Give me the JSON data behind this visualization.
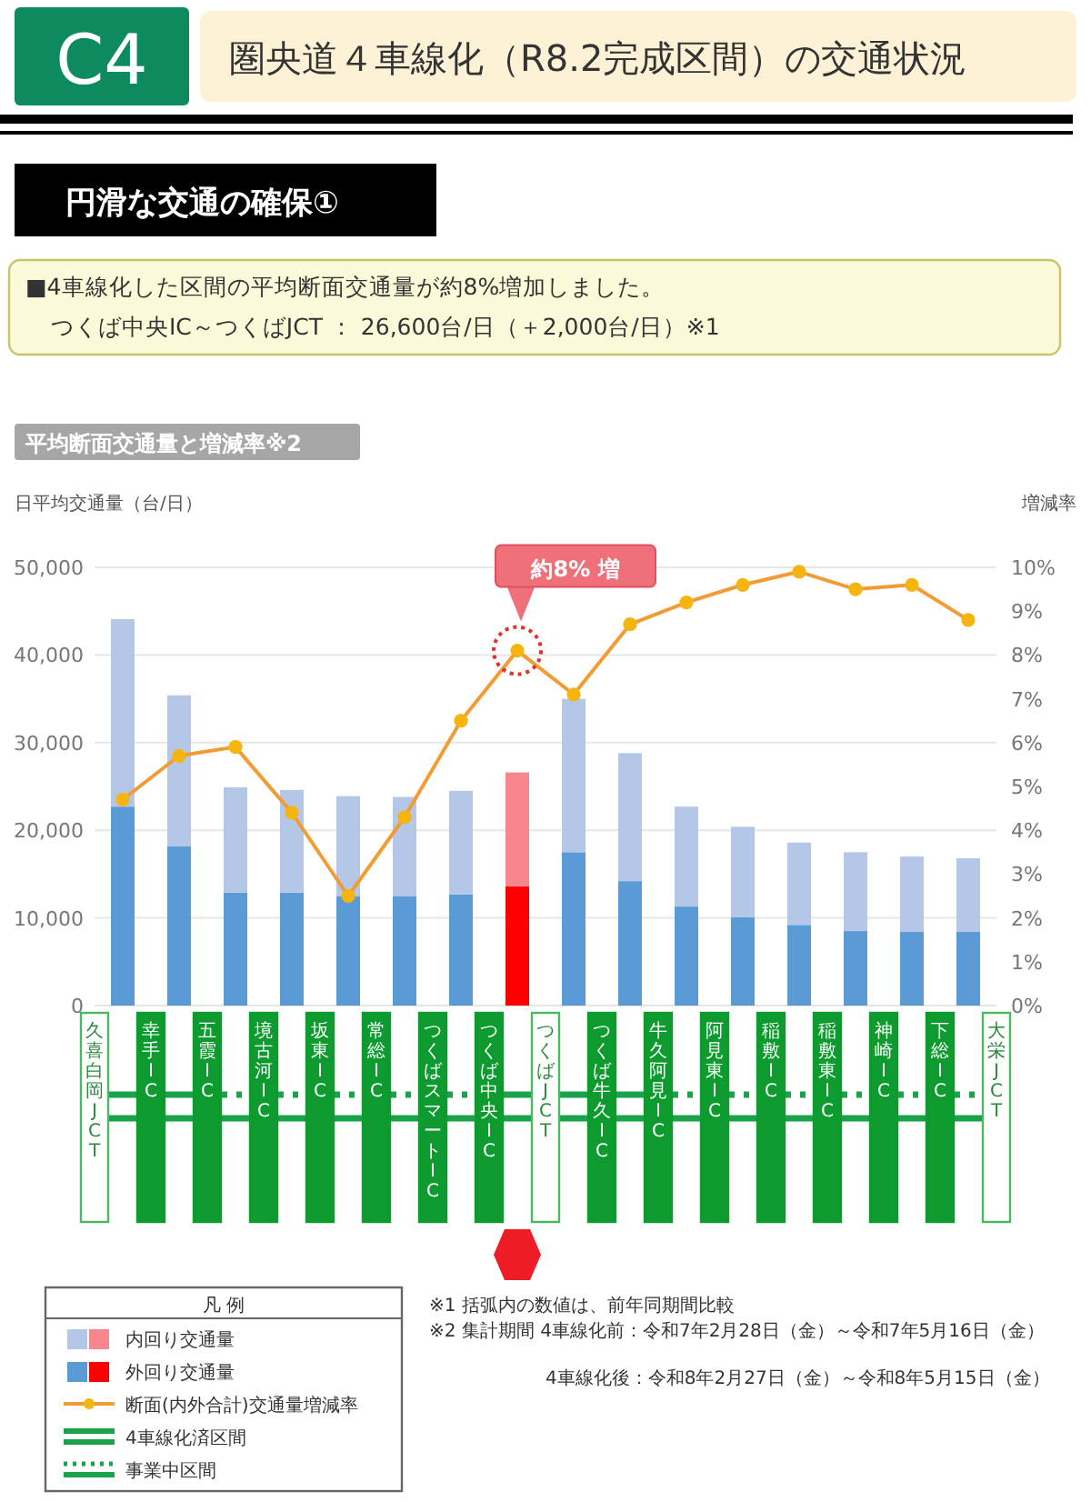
{
  "chart_data": {
    "type": "bar",
    "title": "圏央道４車線化（R8.2完成区間）の交通状況",
    "subtitle": "円滑な交通の確保①",
    "ylabel": "日平均交通量（台/日）",
    "y2label": "増減率",
    "legend_title": "凡 例",
    "categories": [
      null,
      null,
      null,
      null,
      null,
      null,
      null,
      null,
      null,
      null,
      null,
      null,
      null,
      null,
      null,
      null
    ],
    "stacked": true,
    "grid": "y",
    "legend": "bottom left",
    "marker": "circle",
    "line_style": "solid",
    "tick_labels": "y",
    "ylim": [
      0,
      50000
    ],
    "yticks": [
      0,
      {
        "value": 10000,
        "label": "10,000"
      },
      {
        "value": 20000,
        "label": "20,000"
      },
      {
        "value": 30000,
        "label": "30,000"
      },
      {
        "value": 40000,
        "label": "40,000"
      },
      {
        "value": 50000,
        "label": "50,000"
      }
    ],
    "y2lim": [
      0,
      10
    ],
    "y2ticks": [
      {
        "value": 0,
        "label": "0%"
      },
      {
        "value": 1,
        "label": "1%"
      },
      {
        "value": 2,
        "label": "2%"
      },
      {
        "value": 3,
        "label": "3%"
      },
      {
        "value": 4,
        "label": "4%"
      },
      {
        "value": 5,
        "label": "5%"
      },
      {
        "value": 6,
        "label": "6%"
      },
      {
        "value": 7,
        "label": "7%"
      },
      {
        "value": 8,
        "label": "8%"
      },
      {
        "value": 9,
        "label": "9%"
      },
      {
        "value": 10,
        "label": "10%"
      }
    ],
    "series": [
      {
        "name": "外回り交通量",
        "color": "#5b9bd5",
        "colors": [
          "#5b9bd5",
          "#5b9bd5",
          "#5b9bd5",
          "#5b9bd5",
          "#5b9bd5",
          "#5b9bd5",
          "#5b9bd5",
          "#ff0000",
          "#5b9bd5",
          "#5b9bd5",
          "#5b9bd5",
          "#5b9bd5",
          "#5b9bd5",
          "#5b9bd5",
          "#5b9bd5",
          "#5b9bd5"
        ],
        "values": [
          22700,
          18200,
          12900,
          12900,
          12500,
          12500,
          12700,
          13600,
          17500,
          14200,
          11300,
          10100,
          9200,
          8500,
          8400,
          8400
        ]
      },
      {
        "name": "内回り交通量",
        "color": "#b4c7e7",
        "colors": [
          "#b4c7e7",
          "#b4c7e7",
          "#b4c7e7",
          "#b4c7e7",
          "#b4c7e7",
          "#b4c7e7",
          "#b4c7e7",
          "#f8868e",
          "#b4c7e7",
          "#b4c7e7",
          "#b4c7e7",
          "#b4c7e7",
          "#b4c7e7",
          "#b4c7e7",
          "#b4c7e7",
          "#b4c7e7"
        ],
        "values": [
          21400,
          17200,
          12000,
          11700,
          11400,
          11300,
          11800,
          13000,
          17500,
          14600,
          11400,
          10300,
          9400,
          9000,
          8600,
          8400
        ]
      },
      {
        "name": "断面(内外合計)交通量増減率",
        "type": "line",
        "axis": "y2",
        "color": "#f39c35",
        "values": [
          4.7,
          5.7,
          5.9,
          4.4,
          2.5,
          4.3,
          6.5,
          8.1,
          7.1,
          8.7,
          9.2,
          9.6,
          9.9,
          9.5,
          9.6,
          8.8
        ]
      }
    ],
    "annotations": [
      "C4",
      "■4車線化した区間の平均断面交通量が約8%増加しました。",
      "つくば中央IC～つくばJCT ： 26,600台/日（＋2,000台/日）※1",
      "平均断面交通量と増減率※2",
      "※1 括弧内の数値は、前年同期間比較",
      "※2 集計期間 4車線化前：令和7年2月28日（金）～令和7年5月16日（金）",
      "4車線化後：令和8年2月27日（金）～令和8年5月15日（金）",
      "4車線化済区間",
      "事業中区間",
      "約8% 増",
      "久喜白岡JCT",
      "幸手IC",
      "五霞IC",
      "境古河IC",
      "坂東IC",
      "常総IC",
      "つくばスマートIC",
      "つくば中央IC",
      "つくばJCT",
      "つくば牛久IC",
      "牛久阿見IC",
      "阿見東IC",
      "稲敷IC",
      "稲敷東IC",
      "神崎IC",
      "下総IC",
      "大栄JCT"
    ]
  }
}
